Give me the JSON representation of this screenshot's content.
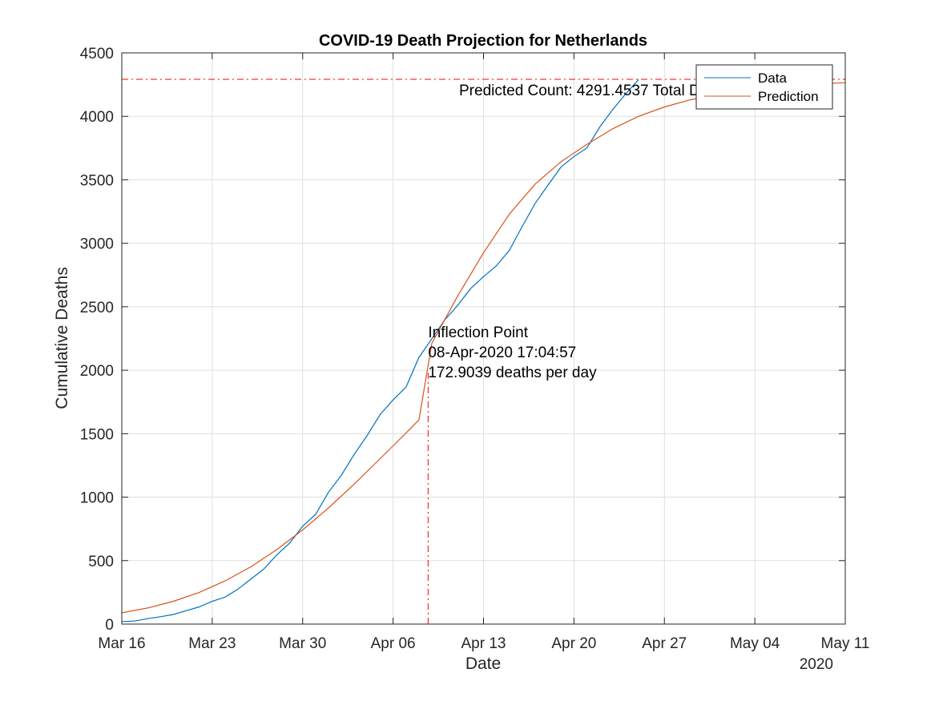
{
  "chart_data": {
    "type": "line",
    "title": "COVID-19 Death Projection for Netherlands",
    "xlabel": "Date",
    "ylabel": "Cumulative Deaths",
    "x_tick_labels": [
      "Mar 16",
      "Mar 23",
      "Mar 30",
      "Apr 06",
      "Apr 13",
      "Apr 20",
      "Apr 27",
      "May 04",
      "May 11"
    ],
    "x_year_label": "2020",
    "x_range": [
      "2020-03-16",
      "2020-05-11"
    ],
    "y_ticks": [
      0,
      500,
      1000,
      1500,
      2000,
      2500,
      3000,
      3500,
      4000,
      4500
    ],
    "ylim": [
      0,
      4500
    ],
    "grid": true,
    "legend_position": "top-right",
    "legend": [
      "Data",
      "Prediction"
    ],
    "series": [
      {
        "name": "Data",
        "color": "#0072BD",
        "x": [
          "2020-03-16",
          "2020-03-17",
          "2020-03-18",
          "2020-03-19",
          "2020-03-20",
          "2020-03-21",
          "2020-03-22",
          "2020-03-23",
          "2020-03-24",
          "2020-03-25",
          "2020-03-26",
          "2020-03-27",
          "2020-03-28",
          "2020-03-29",
          "2020-03-30",
          "2020-03-31",
          "2020-04-01",
          "2020-04-02",
          "2020-04-03",
          "2020-04-04",
          "2020-04-05",
          "2020-04-06",
          "2020-04-07",
          "2020-04-08",
          "2020-04-09",
          "2020-04-10",
          "2020-04-11",
          "2020-04-12",
          "2020-04-13",
          "2020-04-14",
          "2020-04-15",
          "2020-04-16",
          "2020-04-17",
          "2020-04-18",
          "2020-04-19",
          "2020-04-20",
          "2020-04-21",
          "2020-04-22",
          "2020-04-23",
          "2020-04-24",
          "2020-04-25"
        ],
        "y": [
          20,
          24,
          43,
          58,
          76,
          106,
          136,
          179,
          213,
          276,
          356,
          434,
          546,
          639,
          771,
          864,
          1039,
          1173,
          1339,
          1487,
          1651,
          1766,
          1867,
          2101,
          2248,
          2396,
          2511,
          2643,
          2737,
          2823,
          2945,
          3134,
          3315,
          3459,
          3601,
          3684,
          3751,
          3916,
          4054,
          4177,
          4289
        ]
      },
      {
        "name": "Prediction",
        "color": "#D95319",
        "x": [
          "2020-03-16",
          "2020-03-18",
          "2020-03-20",
          "2020-03-22",
          "2020-03-24",
          "2020-03-26",
          "2020-03-28",
          "2020-03-30",
          "2020-04-01",
          "2020-04-03",
          "2020-04-05",
          "2020-04-07",
          "2020-04-08",
          "2020-04-09",
          "2020-04-11",
          "2020-04-13",
          "2020-04-15",
          "2020-04-17",
          "2020-04-19",
          "2020-04-21",
          "2020-04-23",
          "2020-04-25",
          "2020-04-27",
          "2020-04-29",
          "2020-05-01",
          "2020-05-03",
          "2020-05-05",
          "2020-05-07",
          "2020-05-09",
          "2020-05-11"
        ],
        "y": [
          89,
          127,
          180,
          250,
          340,
          452,
          587,
          742,
          915,
          1104,
          1303,
          1505,
          1609,
          2213,
          2585,
          2926,
          3230,
          3467,
          3643,
          3779,
          3902,
          4000,
          4074,
          4130,
          4172,
          4203,
          4226,
          4243,
          4256,
          4265
        ]
      }
    ],
    "annotations": {
      "predicted_count": "Predicted Count: 4291.4537 Total Deaths",
      "inflection_line1": "Inflection Point",
      "inflection_line2": "08-Apr-2020 17:04:57",
      "inflection_line3": "172.9039 deaths per day",
      "inflection_date": "2020-04-08T17:04:57",
      "asymptote_value": 4291.4537
    }
  }
}
